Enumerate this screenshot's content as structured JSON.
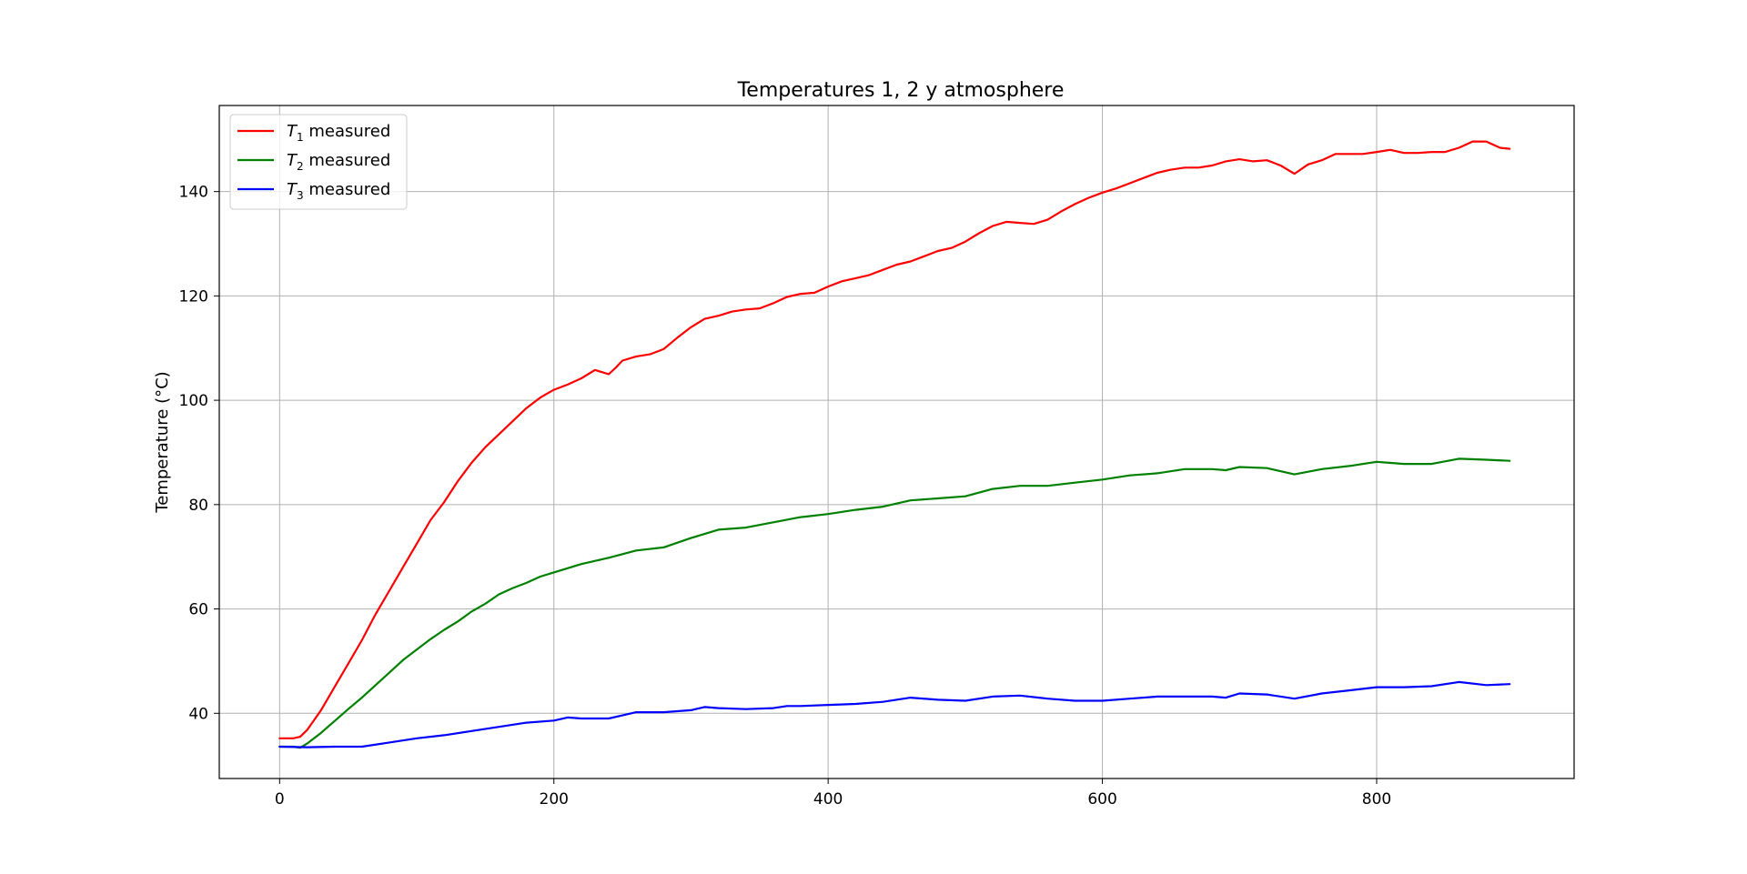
{
  "chart_data": {
    "type": "line",
    "title": "Temperatures 1, 2 y atmosphere",
    "xlabel": "",
    "ylabel": "Temperature (°C)",
    "xlim": [
      -44,
      944
    ],
    "ylim": [
      27.5,
      156.5
    ],
    "xticks": [
      0,
      200,
      400,
      600,
      800
    ],
    "yticks": [
      40,
      60,
      80,
      100,
      120,
      140
    ],
    "grid": true,
    "legend_position": "top-left",
    "series": [
      {
        "name": "T1 measured",
        "label_main": "T",
        "label_sub": "1",
        "label_rest": " measured",
        "color": "#ff0000",
        "x": [
          0,
          10,
          15,
          20,
          30,
          40,
          50,
          60,
          70,
          80,
          90,
          100,
          110,
          120,
          130,
          140,
          150,
          160,
          170,
          180,
          190,
          200,
          210,
          220,
          230,
          240,
          245,
          250,
          260,
          270,
          280,
          290,
          300,
          310,
          320,
          330,
          340,
          350,
          360,
          370,
          380,
          390,
          400,
          410,
          420,
          430,
          440,
          450,
          460,
          470,
          480,
          490,
          500,
          510,
          520,
          530,
          540,
          550,
          560,
          570,
          580,
          590,
          600,
          610,
          620,
          630,
          640,
          650,
          660,
          670,
          680,
          690,
          700,
          710,
          720,
          730,
          740,
          750,
          760,
          770,
          780,
          790,
          800,
          810,
          820,
          830,
          840,
          850,
          860,
          870,
          880,
          890,
          897
        ],
        "y": [
          35.2,
          35.2,
          35.5,
          36.8,
          40.5,
          45,
          49.5,
          54,
          59,
          63.5,
          68,
          72.5,
          77,
          80.5,
          84.5,
          88,
          91,
          93.5,
          96,
          98.5,
          100.5,
          102,
          103,
          104.2,
          105.8,
          105,
          106.2,
          107.6,
          108.4,
          108.8,
          109.8,
          112,
          114,
          115.6,
          116.2,
          117,
          117.4,
          117.6,
          118.6,
          119.8,
          120.4,
          120.6,
          121.8,
          122.8,
          123.4,
          124,
          125,
          126,
          126.6,
          127.6,
          128.6,
          129.2,
          130.4,
          132,
          133.4,
          134.2,
          134,
          133.8,
          134.6,
          136.2,
          137.6,
          138.8,
          139.8,
          140.6,
          141.6,
          142.6,
          143.6,
          144.2,
          144.6,
          144.6,
          145,
          145.8,
          146.2,
          145.8,
          146,
          145,
          143.4,
          145.2,
          146,
          147.2,
          147.2,
          147.2,
          147.6,
          148,
          147.4,
          147.4,
          147.6,
          147.6,
          148.4,
          149.6,
          149.6,
          148.4,
          148.2
        ]
      },
      {
        "name": "T2 measured",
        "label_main": "T",
        "label_sub": "2",
        "label_rest": " measured",
        "color": "#008000",
        "x": [
          0,
          10,
          15,
          20,
          30,
          40,
          50,
          60,
          70,
          80,
          90,
          100,
          110,
          120,
          130,
          140,
          150,
          160,
          170,
          180,
          190,
          200,
          220,
          240,
          260,
          280,
          300,
          320,
          340,
          360,
          380,
          400,
          420,
          440,
          460,
          480,
          500,
          520,
          540,
          560,
          580,
          600,
          620,
          640,
          660,
          680,
          690,
          700,
          720,
          740,
          760,
          780,
          800,
          820,
          840,
          860,
          880,
          897
        ],
        "y": [
          33.6,
          33.6,
          33.4,
          34.2,
          36.2,
          38.5,
          40.8,
          43,
          45.4,
          47.8,
          50.2,
          52.2,
          54.2,
          56,
          57.6,
          59.5,
          61,
          62.8,
          64,
          65,
          66.2,
          67,
          68.6,
          69.8,
          71.2,
          71.8,
          73.6,
          75.2,
          75.6,
          76.6,
          77.6,
          78.2,
          79,
          79.6,
          80.8,
          81.2,
          81.6,
          83,
          83.6,
          83.6,
          84.2,
          84.8,
          85.6,
          86,
          86.8,
          86.8,
          86.6,
          87.2,
          87,
          85.8,
          86.8,
          87.4,
          88.2,
          87.8,
          87.8,
          88.8,
          88.6,
          88.4
        ]
      },
      {
        "name": "T3 measured",
        "label_main": "T",
        "label_sub": "3",
        "label_rest": " measured",
        "color": "#0000ff",
        "x": [
          0,
          20,
          40,
          60,
          80,
          100,
          120,
          140,
          160,
          180,
          200,
          210,
          220,
          240,
          250,
          260,
          280,
          300,
          310,
          320,
          340,
          360,
          370,
          380,
          400,
          420,
          440,
          460,
          480,
          500,
          520,
          540,
          560,
          580,
          600,
          620,
          640,
          660,
          680,
          690,
          700,
          720,
          740,
          760,
          780,
          800,
          820,
          840,
          860,
          880,
          897
        ],
        "y": [
          33.6,
          33.5,
          33.6,
          33.6,
          34.4,
          35.2,
          35.8,
          36.6,
          37.4,
          38.2,
          38.6,
          39.2,
          39,
          39,
          39.6,
          40.2,
          40.2,
          40.6,
          41.2,
          41,
          40.8,
          41,
          41.4,
          41.4,
          41.6,
          41.8,
          42.2,
          43,
          42.6,
          42.4,
          43.2,
          43.4,
          42.8,
          42.4,
          42.4,
          42.8,
          43.2,
          43.2,
          43.2,
          43,
          43.8,
          43.6,
          42.8,
          43.8,
          44.4,
          45,
          45,
          45.2,
          46,
          45.4,
          45.6
        ]
      }
    ]
  }
}
